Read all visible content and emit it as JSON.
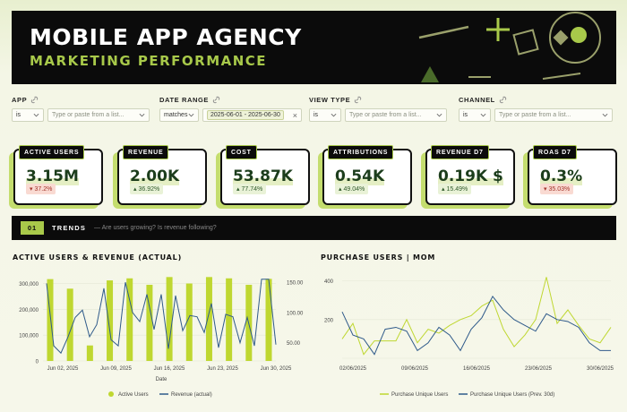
{
  "header": {
    "title": "MOBILE APP AGENCY",
    "subtitle": "MARKETING PERFORMANCE"
  },
  "filters": [
    {
      "label": "APP",
      "operator": "is",
      "placeholder": "Type or paste from a list..."
    },
    {
      "label": "DATE RANGE",
      "operator": "matches",
      "value": "2025-06-01 - 2025-06-30"
    },
    {
      "label": "VIEW TYPE",
      "operator": "is",
      "placeholder": "Type or paste from a list..."
    },
    {
      "label": "CHANNEL",
      "operator": "is",
      "placeholder": "Type or paste from a list..."
    }
  ],
  "kpis": [
    {
      "label": "ACTIVE USERS",
      "value": "3.15M",
      "delta": "37.2%",
      "direction": "down"
    },
    {
      "label": "REVENUE",
      "value": "2.00K",
      "delta": "36.92%",
      "direction": "up"
    },
    {
      "label": "COST",
      "value": "53.87K",
      "delta": "77.74%",
      "direction": "up"
    },
    {
      "label": "ATTRIBUTIONS",
      "value": "0.54K",
      "delta": "49.04%",
      "direction": "up"
    },
    {
      "label": "REVENUE D7",
      "value": "0.19K $",
      "delta": "15.49%",
      "direction": "up"
    },
    {
      "label": "ROAS D7",
      "value": "0.3%",
      "delta": "35.03%",
      "direction": "down"
    }
  ],
  "trends": {
    "number": "01",
    "label": "TRENDS",
    "subtitle": "— Are users growing? Is revenue following?"
  },
  "colors": {
    "accent": "#a8c94a",
    "bar": "#bfd730",
    "navy": "#2f5a8a",
    "dark": "#0b0b0b"
  },
  "chart_data": [
    {
      "type": "bar",
      "title": "ACTIVE USERS & REVENUE (ACTUAL)",
      "xlabel": "Date",
      "x_ticks": [
        "Jun 02, 2025",
        "Jun 09, 2025",
        "Jun 16, 2025",
        "Jun 23, 2025",
        "Jun 30, 2025"
      ],
      "y_ticks_left": [
        "0",
        "100,000",
        "200,000",
        "300,000"
      ],
      "y_ticks_right": [
        "50.00",
        "100.00",
        "150.00"
      ],
      "ylim_left": [
        0,
        340000
      ],
      "ylim_right": [
        20,
        165
      ],
      "series": [
        {
          "name": "Active Users",
          "kind": "bar",
          "axis": "left",
          "values": [
            317000,
            280000,
            60000,
            312000,
            320000,
            295000,
            325000,
            300000,
            325000,
            320000,
            295000,
            318000
          ]
        },
        {
          "name": "Revenue (actual)",
          "kind": "line",
          "axis": "right",
          "values": [
            148,
            45,
            33,
            60,
            92,
            104,
            60,
            80,
            140,
            55,
            45,
            150,
            100,
            85,
            130,
            72,
            130,
            40,
            128,
            70,
            95,
            93,
            67,
            115,
            42,
            97,
            93,
            50,
            92,
            45,
            155,
            155,
            47
          ]
        }
      ],
      "legend": "bottom"
    },
    {
      "type": "line",
      "title": "PURCHASE USERS | MOM",
      "x_ticks": [
        "02/06/2025",
        "09/06/2025",
        "16/06/2025",
        "23/06/2025",
        "30/06/2025"
      ],
      "y_ticks": [
        "200",
        "400"
      ],
      "ylim": [
        0,
        440
      ],
      "series": [
        {
          "name": "Purchase Unique Users",
          "values": [
            100,
            180,
            20,
            90,
            90,
            90,
            200,
            80,
            150,
            130,
            170,
            200,
            220,
            270,
            300,
            150,
            60,
            120,
            200,
            420,
            180,
            250,
            170,
            100,
            80,
            160
          ]
        },
        {
          "name": "Purchase Unique Users (Prev. 30d)",
          "values": [
            240,
            120,
            100,
            20,
            150,
            160,
            140,
            40,
            80,
            160,
            120,
            40,
            150,
            210,
            320,
            250,
            200,
            170,
            140,
            230,
            200,
            190,
            160,
            80,
            40,
            40
          ]
        }
      ],
      "legend": "bottom"
    }
  ]
}
